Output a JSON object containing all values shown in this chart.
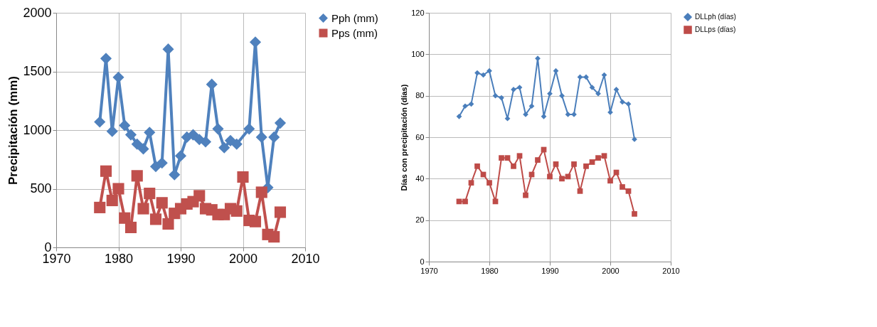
{
  "chart_data": [
    {
      "type": "line",
      "ylabel": "Precipitación  (mm)",
      "x": [
        1977,
        1978,
        1979,
        1980,
        1981,
        1982,
        1983,
        1984,
        1985,
        1986,
        1987,
        1988,
        1989,
        1990,
        1991,
        1992,
        1993,
        1994,
        1995,
        1996,
        1997,
        1998,
        1999,
        2000,
        2001,
        2002,
        2003,
        2004,
        2005,
        2006
      ],
      "series": [
        {
          "name": "Pph (mm)",
          "color": "#4f81bd",
          "marker": "diamond",
          "values": [
            1070,
            1610,
            990,
            1450,
            1040,
            960,
            880,
            840,
            980,
            690,
            720,
            1690,
            620,
            780,
            940,
            960,
            920,
            900,
            1390,
            1010,
            850,
            910,
            880,
            null,
            1010,
            1750,
            940,
            510,
            940,
            1060
          ]
        },
        {
          "name": "Pps (mm)",
          "color": "#c0504d",
          "marker": "square",
          "values": [
            340,
            650,
            400,
            500,
            250,
            170,
            610,
            330,
            460,
            240,
            380,
            200,
            290,
            330,
            370,
            390,
            440,
            330,
            320,
            280,
            280,
            330,
            310,
            600,
            230,
            220,
            470,
            110,
            90,
            300
          ]
        }
      ],
      "xlim": [
        1970,
        2010
      ],
      "xticks": [
        1970,
        1980,
        1990,
        2000,
        2010
      ],
      "ylim": [
        0,
        2000
      ],
      "yticks": [
        0,
        500,
        1000,
        1500,
        2000
      ],
      "grid": true,
      "legend": "right"
    },
    {
      "type": "line",
      "ylabel": "Días  con precipitación  (días)",
      "x": [
        1975,
        1976,
        1977,
        1978,
        1979,
        1980,
        1981,
        1982,
        1983,
        1984,
        1985,
        1986,
        1987,
        1988,
        1989,
        1990,
        1991,
        1992,
        1993,
        1994,
        1995,
        1996,
        1997,
        1998,
        1999,
        2000,
        2001,
        2002,
        2003,
        2004
      ],
      "series": [
        {
          "name": "DLLph (días)",
          "color": "#4a7ebb",
          "marker": "diamond",
          "values": [
            70,
            75,
            76,
            91,
            90,
            92,
            80,
            79,
            69,
            83,
            84,
            71,
            75,
            98,
            70,
            81,
            92,
            80,
            71,
            71,
            89,
            89,
            84,
            81,
            90,
            72,
            83,
            77,
            76,
            59
          ]
        },
        {
          "name": "DLLps (días)",
          "color": "#be4b48",
          "marker": "square",
          "values": [
            29,
            29,
            38,
            46,
            42,
            38,
            29,
            50,
            50,
            46,
            51,
            32,
            42,
            49,
            54,
            41,
            47,
            40,
            41,
            47,
            34,
            46,
            48,
            50,
            51,
            39,
            43,
            36,
            34,
            23
          ]
        }
      ],
      "xlim": [
        1970,
        2010
      ],
      "xticks": [
        1970,
        1980,
        1990,
        2000,
        2010
      ],
      "ylim": [
        0,
        120
      ],
      "yticks": [
        0,
        20,
        40,
        60,
        80,
        100,
        120
      ],
      "grid": true,
      "legend": "right"
    }
  ]
}
